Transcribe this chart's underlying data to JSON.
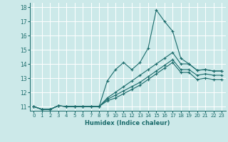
{
  "xlabel": "Humidex (Indice chaleur)",
  "xlim": [
    -0.5,
    23.5
  ],
  "ylim": [
    10.7,
    18.3
  ],
  "yticks": [
    11,
    12,
    13,
    14,
    15,
    16,
    17,
    18
  ],
  "xticks": [
    0,
    1,
    2,
    3,
    4,
    5,
    6,
    7,
    8,
    9,
    10,
    11,
    12,
    13,
    14,
    15,
    16,
    17,
    18,
    19,
    20,
    21,
    22,
    23
  ],
  "background_color": "#cce9e9",
  "grid_color": "#ffffff",
  "line_color": "#1a6b6b",
  "line1": [
    11.0,
    10.8,
    10.8,
    11.05,
    11.0,
    11.0,
    11.0,
    11.0,
    11.0,
    12.8,
    13.6,
    14.1,
    13.6,
    14.1,
    15.1,
    17.8,
    17.0,
    16.3,
    14.4,
    14.0,
    13.55,
    13.6,
    13.5,
    13.5
  ],
  "line2": [
    11.0,
    10.8,
    10.8,
    11.05,
    11.0,
    11.0,
    11.0,
    11.0,
    11.0,
    11.6,
    12.0,
    12.4,
    12.8,
    13.2,
    13.6,
    14.0,
    14.4,
    14.8,
    14.0,
    14.0,
    13.55,
    13.6,
    13.5,
    13.5
  ],
  "line3": [
    11.0,
    10.8,
    10.8,
    11.05,
    11.0,
    11.0,
    11.0,
    11.0,
    11.0,
    11.5,
    11.8,
    12.1,
    12.4,
    12.7,
    13.1,
    13.5,
    13.9,
    14.3,
    13.6,
    13.6,
    13.2,
    13.3,
    13.2,
    13.2
  ],
  "line4": [
    11.0,
    10.8,
    10.8,
    11.05,
    11.0,
    11.0,
    11.0,
    11.0,
    11.0,
    11.4,
    11.6,
    11.9,
    12.2,
    12.5,
    12.9,
    13.3,
    13.7,
    14.1,
    13.4,
    13.4,
    12.9,
    13.0,
    12.9,
    12.9
  ]
}
